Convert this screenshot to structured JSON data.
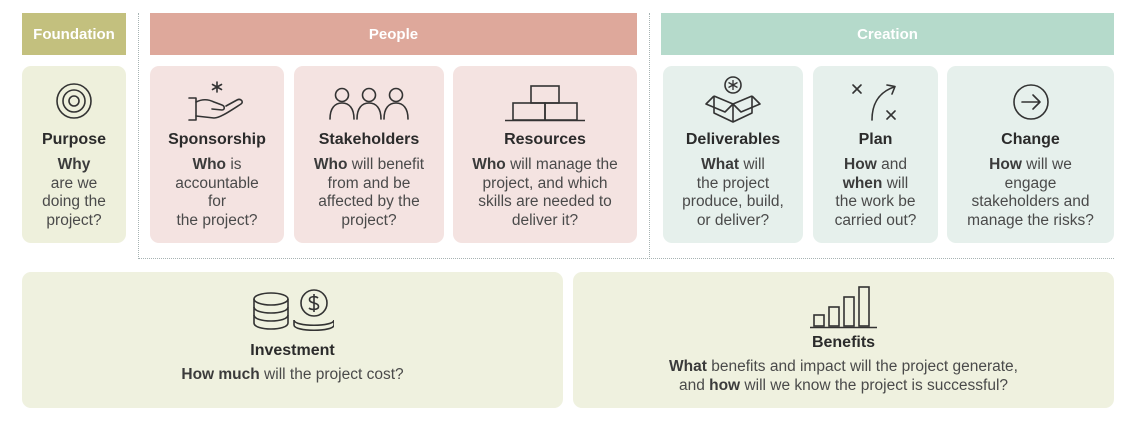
{
  "colors": {
    "foundation_band": "#c3c07e",
    "foundation_card": "#eef0dc",
    "people_band": "#dea89b",
    "people_card": "#f4e3e1",
    "creation_band": "#b5dacb",
    "creation_card": "#e6f0ec",
    "bottom_card": "#eff1df",
    "line": "#333333"
  },
  "bands": {
    "foundation": "Foundation",
    "people": "People",
    "creation": "Creation"
  },
  "cards": {
    "purpose": {
      "icon": "target-icon",
      "title": "Purpose",
      "l1": "Why",
      "l2": "are we",
      "l3": "doing the",
      "l4": "project?"
    },
    "sponsorship": {
      "icon": "hand-star-icon",
      "title": "Sponsorship",
      "l1b": "Who",
      "l1": " is",
      "l2": "accountable",
      "l3": "for",
      "l4": "the project?"
    },
    "stakeholders": {
      "icon": "people-group-icon",
      "title": "Stakeholders",
      "l1b": "Who",
      "l1": " will benefit",
      "l2": "from and be",
      "l3": "affected by the",
      "l4": "project?"
    },
    "resources": {
      "icon": "stacked-boxes-icon",
      "title": "Resources",
      "l1b": "Who",
      "l1": " will manage the",
      "l2": "project, and which",
      "l3": "skills are needed to",
      "l4": "deliver it?"
    },
    "deliverables": {
      "icon": "open-box-icon",
      "title": "Deliverables",
      "l1b": "What",
      "l1": " will",
      "l2": "the project",
      "l3": "produce, build,",
      "l4": "or deliver?"
    },
    "plan": {
      "icon": "strategy-plan-icon",
      "title": "Plan",
      "l1b": "How",
      "l1": " and",
      "l2b": "when",
      "l2": " will",
      "l3": "the work be",
      "l4": "carried out?"
    },
    "change": {
      "icon": "arrow-circle-icon",
      "title": "Change",
      "l1b": "How",
      "l1": " will we",
      "l2": "engage",
      "l3": "stakeholders and",
      "l4": "manage the risks?"
    }
  },
  "investment": {
    "icon": "coins-icon",
    "title": "Investment",
    "l1b": "How much",
    "l1": " will the project cost?"
  },
  "benefits": {
    "icon": "bar-growth-icon",
    "title": "Benefits",
    "l1b": "What",
    "l1": " benefits and impact will the project generate,",
    "l2a": "and ",
    "l2b": "how",
    "l2": " will we know the project is successful?"
  }
}
